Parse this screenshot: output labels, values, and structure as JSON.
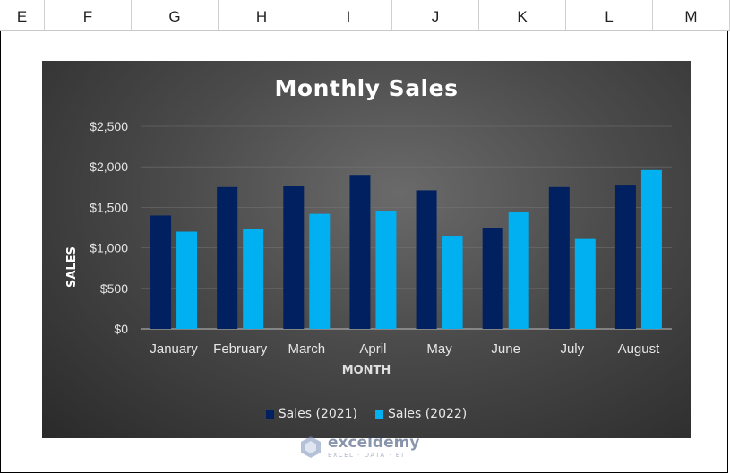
{
  "spreadsheet": {
    "columns": [
      "E",
      "F",
      "G",
      "H",
      "I",
      "J",
      "K",
      "L",
      "M"
    ]
  },
  "chart_data": {
    "type": "bar",
    "title": "Monthly Sales",
    "xlabel": "MONTH",
    "ylabel": "SALES",
    "categories": [
      "January",
      "February",
      "March",
      "April",
      "May",
      "June",
      "July",
      "August"
    ],
    "series": [
      {
        "name": "Sales (2021)",
        "color": "#002060",
        "values": [
          1400,
          1750,
          1770,
          1900,
          1710,
          1250,
          1750,
          1780
        ]
      },
      {
        "name": "Sales (2022)",
        "color": "#00b0f0",
        "values": [
          1200,
          1230,
          1420,
          1460,
          1150,
          1440,
          1110,
          1960
        ]
      }
    ],
    "ylim": [
      0,
      2500
    ],
    "yticks": [
      0,
      500,
      1000,
      1500,
      2000,
      2500
    ],
    "ytick_labels": [
      "$0",
      "$500",
      "$1,000",
      "$1,500",
      "$2,000",
      "$2,500"
    ],
    "grid": true,
    "legend_position": "bottom"
  },
  "watermark": {
    "name": "exceldemy",
    "tagline": "EXCEL · DATA · BI"
  }
}
